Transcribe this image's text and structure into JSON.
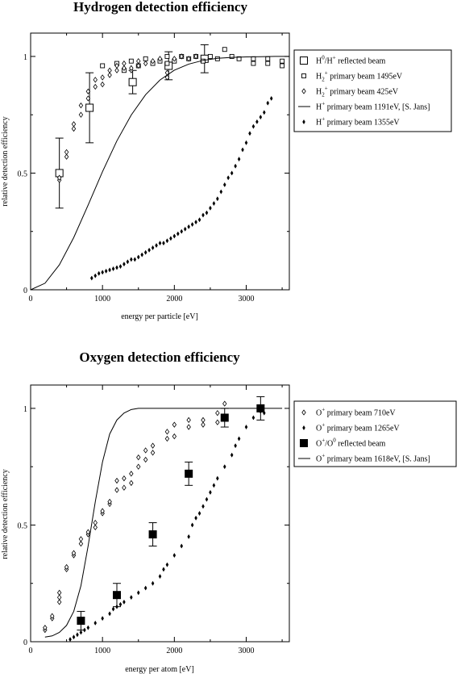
{
  "chart_data": [
    {
      "type": "scatter",
      "title": "Hydrogen detection efficiency",
      "xlabel": "energy per particle [eV]",
      "ylabel": "relative detection efficiency",
      "xlim": [
        0,
        3600
      ],
      "ylim": [
        0,
        1.1
      ],
      "xticks": [
        0,
        1000,
        2000,
        3000
      ],
      "xtick_labels": [
        "0",
        "1000",
        "2000",
        "3000"
      ],
      "yticks": [
        0,
        0.5,
        1
      ],
      "ytick_labels": [
        "0",
        "0.5",
        "1"
      ],
      "grid": false,
      "legend_position": "right",
      "legend": [
        {
          "pre": "H",
          "sup": "0",
          "mid": "/H",
          "sup2": "+",
          "post": " reflected beam",
          "marker": "square-large"
        },
        {
          "pre": "H",
          "sub": "2",
          "sup": "+",
          "post": " primary beam 1495eV",
          "marker": "square-small"
        },
        {
          "pre": "H",
          "sub": "2",
          "sup": "+",
          "post": " primary beam  425eV",
          "marker": "diamond"
        },
        {
          "pre": "H",
          "sup": "+",
          "post": " primary beam 1191eV, [S. Jans]",
          "marker": "line"
        },
        {
          "pre": "H",
          "sup": "+",
          "post": " primary beam 1355eV",
          "marker": "dot"
        }
      ],
      "series": [
        {
          "marker": "square-large",
          "x": [
            400,
            820,
            1420,
            1920,
            2420
          ],
          "y": [
            0.5,
            0.78,
            0.89,
            0.96,
            0.99
          ],
          "err": [
            0.15,
            0.15,
            0.05,
            0.06,
            0.06
          ]
        },
        {
          "marker": "square-small",
          "x": [
            1000,
            1200,
            1300,
            1400,
            1500,
            1600,
            1700,
            1800,
            1900,
            1900,
            2000,
            2100,
            2200,
            2300,
            2400,
            2500,
            2600,
            2700,
            2800,
            2900,
            3100,
            3100,
            3300,
            3300,
            3500,
            3500
          ],
          "y": [
            0.96,
            0.97,
            0.94,
            0.98,
            0.96,
            0.99,
            0.97,
            0.98,
            1.0,
            0.97,
            0.98,
            1.0,
            0.99,
            1.0,
            0.98,
            1.0,
            0.99,
            1.03,
            1.0,
            0.99,
            0.99,
            0.97,
            0.99,
            0.97,
            0.98,
            0.96
          ],
          "err": []
        },
        {
          "marker": "diamond",
          "x": [
            400,
            400,
            500,
            500,
            600,
            600,
            700,
            700,
            800,
            800,
            900,
            900,
            1000,
            1000,
            1100,
            1100,
            1200,
            1200,
            1300,
            1300,
            1400,
            1400,
            1500,
            1500,
            1600,
            1700,
            1800,
            1900,
            1900,
            2000,
            2100,
            2200,
            2300
          ],
          "y": [
            0.47,
            0.48,
            0.57,
            0.59,
            0.69,
            0.71,
            0.75,
            0.79,
            0.82,
            0.85,
            0.87,
            0.9,
            0.88,
            0.91,
            0.92,
            0.94,
            0.94,
            0.96,
            0.95,
            0.97,
            0.94,
            0.95,
            0.96,
            0.98,
            0.97,
            0.98,
            0.99,
            0.91,
            0.93,
            0.99,
            1.0,
            0.99,
            1.0
          ],
          "err": []
        },
        {
          "marker": "line",
          "curve": "1 - exp(-(E/1191)^2)",
          "x": [
            0,
            200,
            400,
            600,
            800,
            1000,
            1200,
            1400,
            1600,
            1800,
            2000,
            2200,
            2400,
            2600,
            2800,
            3000,
            3200,
            3400,
            3600
          ],
          "y": [
            0.0,
            0.028,
            0.107,
            0.224,
            0.363,
            0.506,
            0.638,
            0.749,
            0.836,
            0.899,
            0.941,
            0.967,
            0.983,
            0.992,
            0.996,
            0.998,
            0.999,
            1.0,
            1.0
          ],
          "err": []
        },
        {
          "marker": "dot",
          "x": [
            850,
            900,
            950,
            1000,
            1050,
            1100,
            1150,
            1200,
            1250,
            1300,
            1350,
            1400,
            1450,
            1500,
            1550,
            1600,
            1650,
            1700,
            1750,
            1800,
            1850,
            1900,
            1950,
            2000,
            2050,
            2100,
            2150,
            2200,
            2250,
            2300,
            2350,
            2400,
            2450,
            2500,
            2550,
            2600,
            2650,
            2700,
            2750,
            2800,
            2850,
            2900,
            2950,
            3000,
            3050,
            3100,
            3150,
            3200,
            3250,
            3300,
            3350
          ],
          "y": [
            0.05,
            0.06,
            0.07,
            0.075,
            0.08,
            0.085,
            0.09,
            0.095,
            0.1,
            0.11,
            0.12,
            0.13,
            0.13,
            0.14,
            0.15,
            0.16,
            0.17,
            0.18,
            0.19,
            0.2,
            0.2,
            0.21,
            0.22,
            0.23,
            0.24,
            0.25,
            0.26,
            0.27,
            0.28,
            0.29,
            0.3,
            0.32,
            0.33,
            0.35,
            0.37,
            0.39,
            0.42,
            0.45,
            0.48,
            0.5,
            0.53,
            0.56,
            0.6,
            0.63,
            0.67,
            0.7,
            0.72,
            0.74,
            0.76,
            0.8,
            0.82
          ],
          "err": []
        }
      ]
    },
    {
      "type": "scatter",
      "title": "Oxygen detection efficiency",
      "xlabel": "energy per atom [eV]",
      "ylabel": "relative detection efficiency",
      "xlim": [
        0,
        3600
      ],
      "ylim": [
        0,
        1.1
      ],
      "xticks": [
        0,
        1000,
        2000,
        3000
      ],
      "xtick_labels": [
        "0",
        "1000",
        "2000",
        "3000"
      ],
      "yticks": [
        0,
        0.5,
        1
      ],
      "ytick_labels": [
        "0",
        "0.5",
        "1"
      ],
      "grid": false,
      "legend_position": "right",
      "legend": [
        {
          "pre": "O",
          "sup": "+",
          "post": " primary beam 710eV",
          "marker": "diamond"
        },
        {
          "pre": "O",
          "sup": "+",
          "post": " primary beam 1265eV",
          "marker": "dot"
        },
        {
          "pre": "O",
          "sup": "+",
          "mid": "/O",
          "sup2": "0",
          "post": " reflected beam",
          "marker": "square-filled"
        },
        {
          "pre": "O",
          "sup": "+",
          "post": " primary beam 1618eV, [S. Jans]",
          "marker": "line"
        }
      ],
      "series": [
        {
          "marker": "diamond",
          "x": [
            200,
            200,
            300,
            300,
            400,
            400,
            400,
            500,
            500,
            600,
            600,
            700,
            700,
            800,
            800,
            900,
            900,
            1000,
            1000,
            1100,
            1100,
            1200,
            1200,
            1300,
            1300,
            1400,
            1400,
            1500,
            1500,
            1600,
            1600,
            1700,
            1700,
            1900,
            1900,
            2000,
            2000,
            2200,
            2200,
            2400,
            2400,
            2600,
            2600,
            2700,
            2700,
            3200
          ],
          "y": [
            0.05,
            0.06,
            0.1,
            0.11,
            0.17,
            0.19,
            0.21,
            0.31,
            0.32,
            0.37,
            0.38,
            0.42,
            0.44,
            0.46,
            0.47,
            0.49,
            0.51,
            0.55,
            0.56,
            0.59,
            0.6,
            0.65,
            0.69,
            0.66,
            0.7,
            0.68,
            0.72,
            0.75,
            0.79,
            0.78,
            0.82,
            0.81,
            0.84,
            0.87,
            0.9,
            0.88,
            0.93,
            0.92,
            0.95,
            0.93,
            0.95,
            0.94,
            0.98,
            0.96,
            1.02,
            0.99
          ],
          "err": []
        },
        {
          "marker": "dot",
          "x": [
            550,
            600,
            650,
            700,
            750,
            800,
            900,
            1000,
            1100,
            1150,
            1200,
            1250,
            1300,
            1400,
            1500,
            1600,
            1700,
            1800,
            1850,
            1900,
            2000,
            2100,
            2200,
            2250,
            2300,
            2350,
            2400,
            2450,
            2500,
            2550,
            2600,
            2700,
            2800,
            2850,
            2900,
            3000,
            3100,
            3200,
            3250
          ],
          "y": [
            0.01,
            0.02,
            0.03,
            0.04,
            0.05,
            0.06,
            0.08,
            0.1,
            0.12,
            0.14,
            0.15,
            0.16,
            0.17,
            0.19,
            0.21,
            0.23,
            0.25,
            0.28,
            0.31,
            0.33,
            0.37,
            0.41,
            0.45,
            0.5,
            0.53,
            0.55,
            0.58,
            0.61,
            0.64,
            0.67,
            0.7,
            0.75,
            0.8,
            0.84,
            0.87,
            0.92,
            0.96,
            0.99,
            0.98
          ],
          "err": []
        },
        {
          "marker": "square-filled",
          "x": [
            700,
            1200,
            1700,
            2200,
            2700,
            3200
          ],
          "y": [
            0.09,
            0.2,
            0.46,
            0.72,
            0.96,
            1.0
          ],
          "err": [
            0.04,
            0.05,
            0.05,
            0.05,
            0.04,
            0.05
          ]
        },
        {
          "marker": "line",
          "curve": "1 - exp(-(E/1618)^k) style",
          "x": [
            200,
            300,
            400,
            500,
            600,
            700,
            800,
            900,
            1000,
            1100,
            1200,
            1300,
            1400,
            1500,
            1700,
            2000,
            2500,
            3000,
            3500
          ],
          "y": [
            0.02,
            0.025,
            0.04,
            0.07,
            0.13,
            0.24,
            0.41,
            0.6,
            0.77,
            0.89,
            0.95,
            0.98,
            0.995,
            1.0,
            1.0,
            1.0,
            1.0,
            1.0,
            1.0
          ],
          "err": []
        }
      ]
    }
  ]
}
